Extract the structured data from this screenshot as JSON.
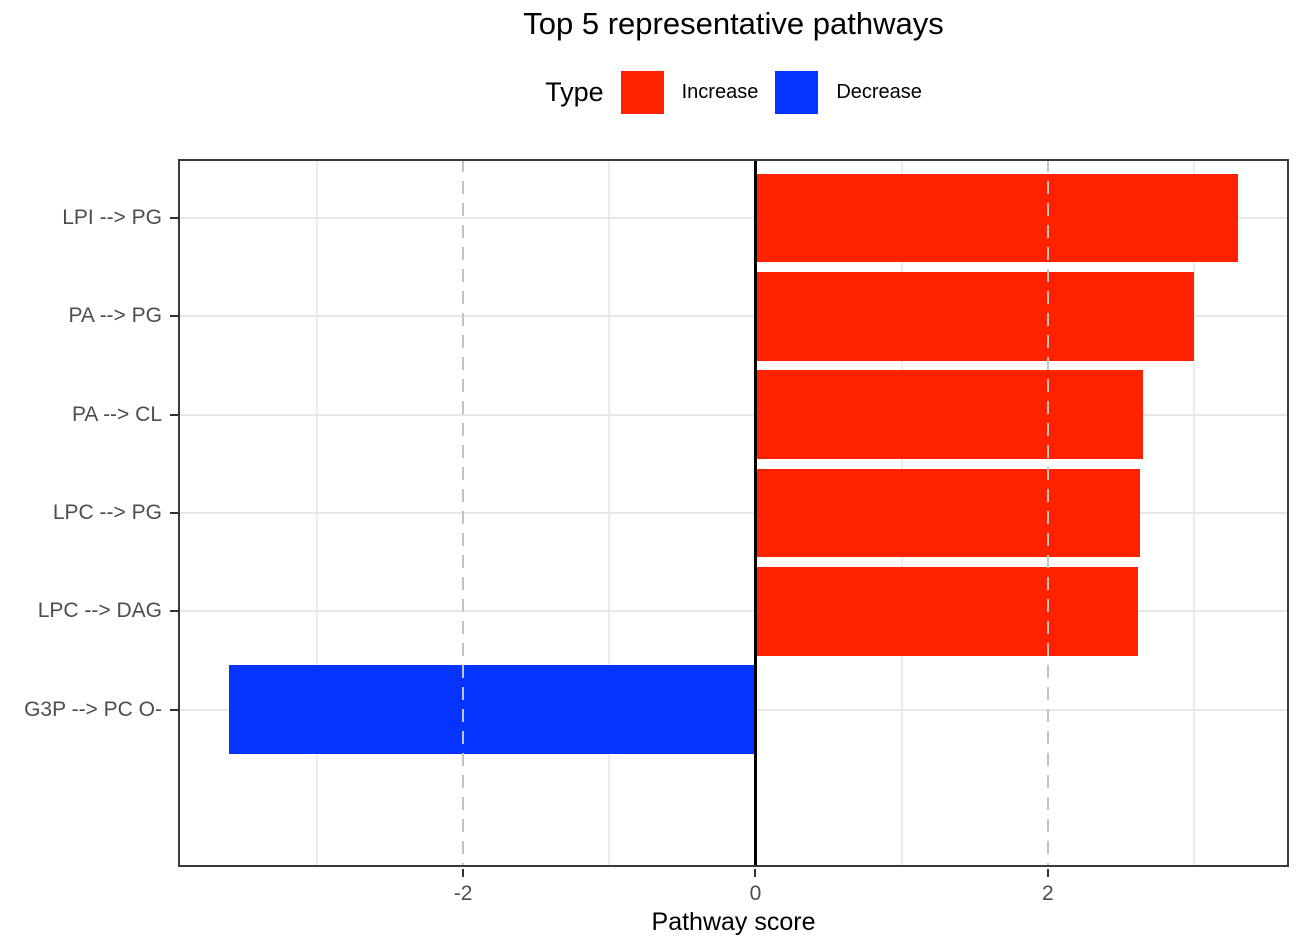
{
  "chart_data": {
    "type": "bar",
    "orientation": "horizontal",
    "title": "Top 5 representative pathways",
    "legend_title": "Type",
    "legend_position": "top",
    "legend": [
      {
        "label": "Increase",
        "color": "#ff2200"
      },
      {
        "label": "Decrease",
        "color": "#0533ff"
      }
    ],
    "categories": [
      "LPI --> PG",
      "PA --> PG",
      "PA --> CL",
      "LPC --> PG",
      "LPC --> DAG",
      "G3P --> PC O-"
    ],
    "values": [
      3.3,
      3.0,
      2.65,
      2.63,
      2.62,
      -3.6
    ],
    "bar_types": [
      "Increase",
      "Increase",
      "Increase",
      "Increase",
      "Increase",
      "Decrease"
    ],
    "xlabel": "Pathway score",
    "ylabel": "",
    "xlim": [
      -3.95,
      3.65
    ],
    "x_ticks": [
      -2,
      0,
      2
    ],
    "x_tick_labels": [
      "-2",
      "0",
      "2"
    ],
    "minor_gridlines": [
      -3,
      -1,
      1,
      3
    ],
    "reference_lines": {
      "dashed": [
        -2,
        2
      ],
      "solid": [
        0
      ]
    },
    "grid": true,
    "colors": {
      "increase_bar": "#ff2200",
      "decrease_bar": "#0533ff",
      "axis_text": "#4d4d4d",
      "dashed_line": "#c2c2c2",
      "panel_border": "#3a3a3a",
      "zero_line": "#000000"
    }
  }
}
